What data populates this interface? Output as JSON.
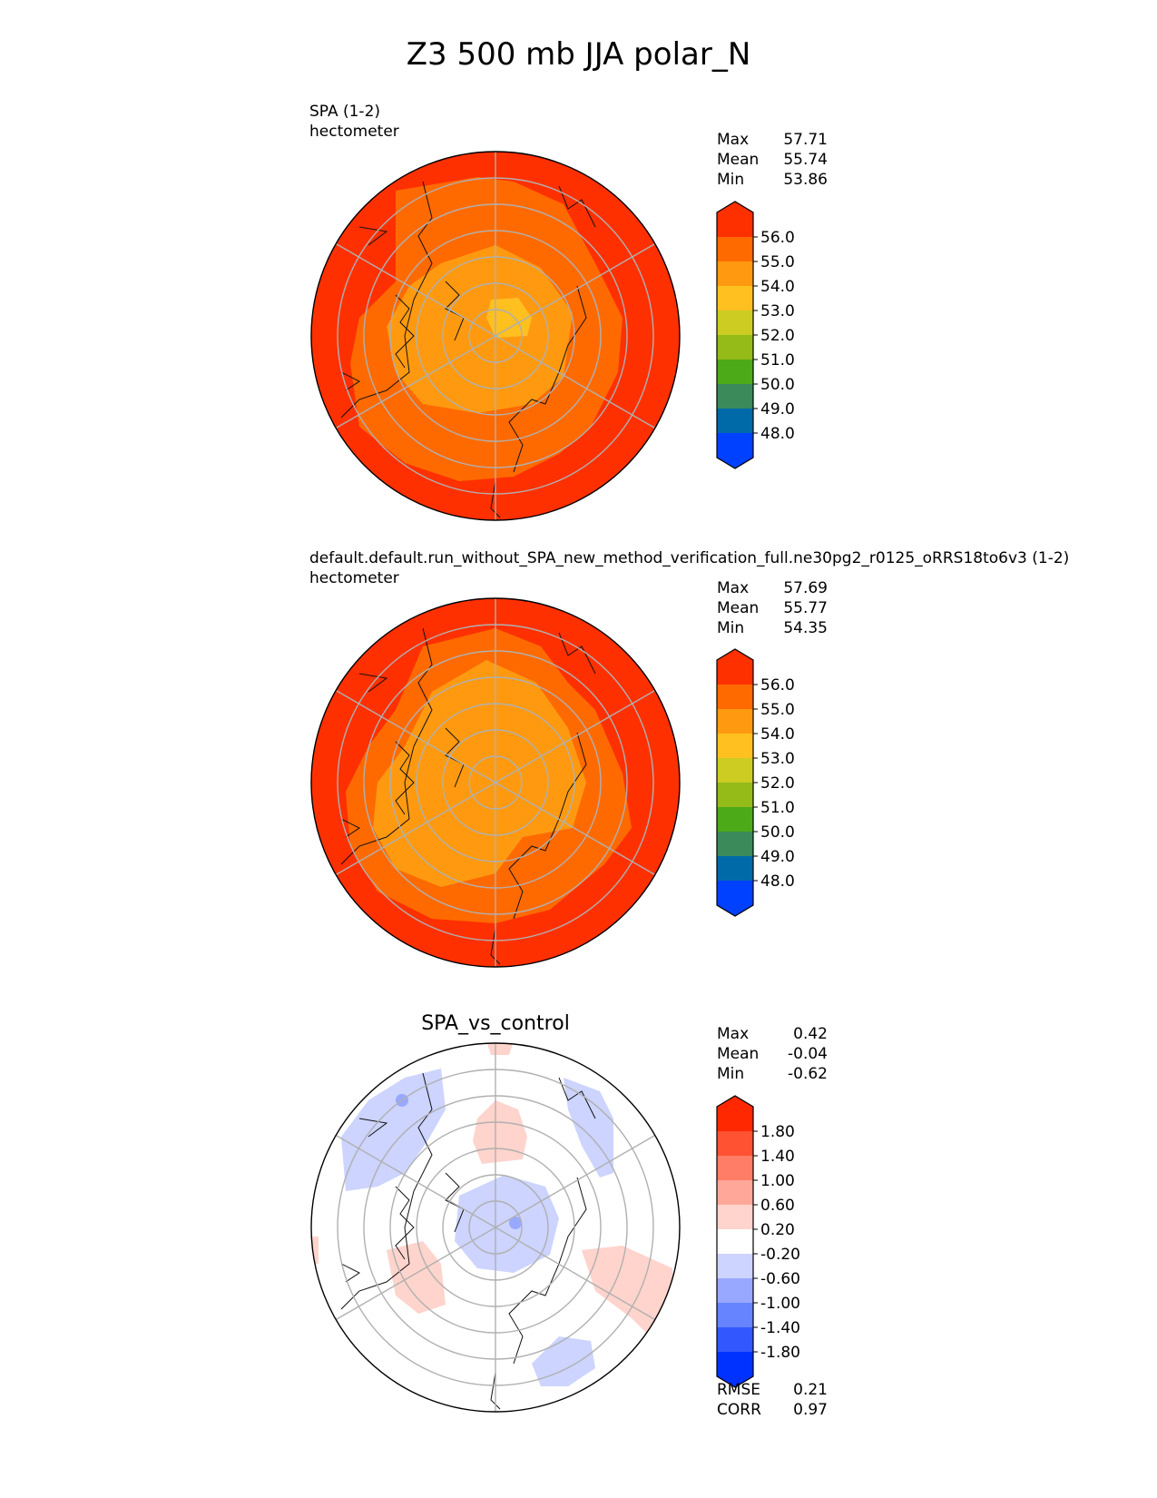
{
  "figure_title": "Z3 500 mb JJA polar_N",
  "colors": {
    "abs_levels": [
      "#0040ff",
      "#006aa8",
      "#3a8a5a",
      "#4caa18",
      "#94bb18",
      "#cccc22",
      "#ffc020",
      "#ff9a10",
      "#ff6a00",
      "#ff3000"
    ],
    "diff_levels": [
      "#0032ff",
      "#3357ff",
      "#6684ff",
      "#99a8ff",
      "#ccd4ff",
      "#ffffff",
      "#ffd4cc",
      "#ffa899",
      "#ff7d66",
      "#ff5233",
      "#ff2800"
    ]
  },
  "chart_data": [
    {
      "type": "heatmap",
      "projection": "north polar stereographic",
      "title_line1": "SPA (1-2)",
      "title_line2": "hectometer",
      "stats": {
        "max_label": "Max",
        "max": "57.71",
        "mean_label": "Mean",
        "mean": "55.74",
        "min_label": "Min",
        "min": "53.86"
      },
      "colorbar": {
        "ticks": [
          "56.0",
          "55.0",
          "54.0",
          "53.0",
          "52.0",
          "51.0",
          "50.0",
          "49.0",
          "48.0"
        ],
        "extend": "both"
      },
      "field": {
        "value_min": 53.86,
        "value_max": 57.71,
        "value_mean": 55.74
      }
    },
    {
      "type": "heatmap",
      "projection": "north polar stereographic",
      "title_line1": "default.default.run_without_SPA_new_method_verification_full.ne30pg2_r0125_oRRS18to6v3 (1-2)",
      "title_line2": "hectometer",
      "stats": {
        "max_label": "Max",
        "max": "57.69",
        "mean_label": "Mean",
        "mean": "55.77",
        "min_label": "Min",
        "min": "54.35"
      },
      "colorbar": {
        "ticks": [
          "56.0",
          "55.0",
          "54.0",
          "53.0",
          "52.0",
          "51.0",
          "50.0",
          "49.0",
          "48.0"
        ],
        "extend": "both"
      },
      "field": {
        "value_min": 54.35,
        "value_max": 57.69,
        "value_mean": 55.77
      }
    },
    {
      "type": "heatmap",
      "projection": "north polar stereographic",
      "title": "SPA_vs_control",
      "stats": {
        "max_label": "Max",
        "max": "0.42",
        "mean_label": "Mean",
        "mean": "-0.04",
        "min_label": "Min",
        "min": "-0.62"
      },
      "colorbar": {
        "ticks": [
          "1.80",
          "1.40",
          "1.00",
          "0.60",
          "0.20",
          "-0.20",
          "-0.60",
          "-1.00",
          "-1.40",
          "-1.80"
        ],
        "extend": "both"
      },
      "metrics": {
        "rmse_label": "RMSE",
        "rmse": "0.21",
        "corr_label": "CORR",
        "corr": "0.97"
      }
    }
  ]
}
